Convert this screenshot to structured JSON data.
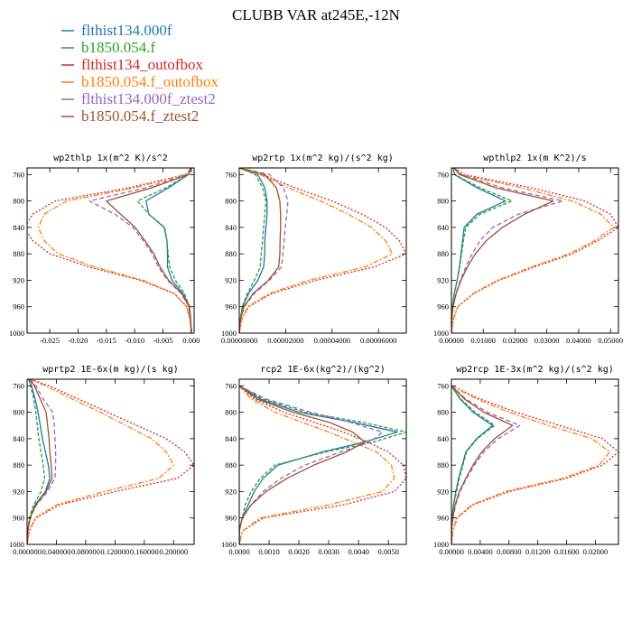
{
  "title": "CLUBB VAR at245E,-12N",
  "legend": [
    {
      "label": "flthist134.000f",
      "color": "#1f77b4"
    },
    {
      "label": "b1850.054.f",
      "color": "#2ca02c"
    },
    {
      "label": "flthist134_outofbox",
      "color": "#d62728"
    },
    {
      "label": "b1850.054.f_outofbox",
      "color": "#ff7f0e"
    },
    {
      "label": "flthist134.000f_ztest2",
      "color": "#9467bd"
    },
    {
      "label": "b1850.054.f_ztest2",
      "color": "#a0522d"
    }
  ],
  "chart_data": [
    {
      "type": "line",
      "title": "wp2thlp  1x(m^2 K)/s^2",
      "xlim": [
        -0.029,
        0.0005
      ],
      "ylim": [
        1000,
        750
      ],
      "xticks": [
        -0.025,
        -0.02,
        -0.015,
        -0.01,
        -0.005,
        0.0
      ],
      "xtick_labels": [
        "-0.025",
        "-0.020",
        "-0.015",
        "-0.010",
        "-0.005",
        "0.000"
      ],
      "yticks": [
        760,
        800,
        840,
        880,
        920,
        960,
        1000
      ],
      "y": [
        750,
        760,
        780,
        800,
        820,
        840,
        860,
        880,
        900,
        920,
        940,
        960,
        980,
        1000
      ],
      "series": [
        {
          "values": [
            0,
            -0.0005,
            -0.004,
            -0.008,
            -0.0075,
            -0.0048,
            -0.0043,
            -0.0042,
            -0.0042,
            -0.0034,
            -0.0015,
            -0.0003,
            -0.0001,
            0.0
          ]
        },
        {
          "values": [
            0,
            -0.0005,
            -0.0045,
            -0.0095,
            -0.0075,
            -0.0047,
            -0.0043,
            -0.0041,
            -0.0038,
            -0.0028,
            -0.0012,
            -0.0003,
            -0.0001,
            0.0
          ]
        },
        {
          "values": [
            0,
            -0.001,
            -0.011,
            -0.024,
            -0.028,
            -0.0295,
            -0.028,
            -0.025,
            -0.018,
            -0.009,
            -0.003,
            -0.0008,
            -0.0002,
            0.0
          ]
        },
        {
          "values": [
            0,
            -0.001,
            -0.01,
            -0.022,
            -0.026,
            -0.027,
            -0.026,
            -0.0235,
            -0.017,
            -0.0085,
            -0.003,
            -0.0008,
            -0.0002,
            0.0
          ]
        },
        {
          "values": [
            0,
            -0.0008,
            -0.008,
            -0.018,
            -0.0135,
            -0.0103,
            -0.0085,
            -0.0069,
            -0.0058,
            -0.0042,
            -0.0018,
            -0.0004,
            -0.0001,
            0.0
          ]
        },
        {
          "values": [
            0,
            -0.0005,
            -0.007,
            -0.015,
            -0.0125,
            -0.0099,
            -0.0082,
            -0.0066,
            -0.0055,
            -0.004,
            -0.0017,
            -0.0004,
            -0.0001,
            0.0
          ]
        }
      ]
    },
    {
      "type": "line",
      "title": "wp2rtp  1x(m^2 kg)/(s^2 kg)",
      "xlim": [
        0.0,
        7.2e-05
      ],
      "ylim": [
        1000,
        750
      ],
      "xticks": [
        0.0,
        2e-05,
        4e-05,
        6e-05
      ],
      "xtick_labels": [
        "0.00000000",
        "0.00002000",
        "0.00004000",
        "0.00006000"
      ],
      "yticks": [
        760,
        800,
        840,
        880,
        920,
        960,
        1000
      ],
      "y": [
        750,
        760,
        780,
        800,
        820,
        840,
        860,
        880,
        900,
        920,
        940,
        960,
        980,
        1000
      ],
      "series": [
        {
          "values": [
            0,
            8e-06,
            1.1e-05,
            1.2e-05,
            1.2e-05,
            1.15e-05,
            1.1e-05,
            1.1e-05,
            1.05e-05,
            8e-06,
            4e-06,
            1.5e-06,
            4e-07,
            0.0
          ]
        },
        {
          "values": [
            0,
            7e-06,
            1e-05,
            1.15e-05,
            1.1e-05,
            1.05e-05,
            1e-05,
            9.5e-06,
            9e-06,
            6.5e-06,
            3.5e-06,
            1.3e-06,
            4e-07,
            0.0
          ]
        },
        {
          "values": [
            0,
            1e-05,
            2.4e-05,
            4e-05,
            5.3e-05,
            6.3e-05,
            6.9e-05,
            7.2e-05,
            5.8e-05,
            3.3e-05,
            1.4e-05,
            4e-06,
            1e-06,
            0.0
          ]
        },
        {
          "values": [
            0,
            9e-06,
            2.1e-05,
            3.5e-05,
            4.7e-05,
            5.7e-05,
            6.3e-05,
            6.6e-05,
            5.4e-05,
            3e-05,
            1.3e-05,
            3.7e-06,
            9e-07,
            0.0
          ]
        },
        {
          "values": [
            0,
            1.3e-05,
            1.9e-05,
            2.1e-05,
            2.05e-05,
            1.98e-05,
            1.93e-05,
            1.88e-05,
            1.82e-05,
            1.3e-05,
            6.5e-06,
            2.2e-06,
            5e-07,
            0.0
          ]
        },
        {
          "values": [
            0,
            1.1e-05,
            1.6e-05,
            1.75e-05,
            1.78e-05,
            1.78e-05,
            1.76e-05,
            1.75e-05,
            1.7e-05,
            1.25e-05,
            6e-06,
            2e-06,
            5e-07,
            0.0
          ]
        }
      ]
    },
    {
      "type": "line",
      "title": "wpthlp2  1x(m K^2)/s",
      "xlim": [
        0.0,
        0.0525
      ],
      "ylim": [
        1000,
        750
      ],
      "xticks": [
        0.0,
        0.01,
        0.02,
        0.03,
        0.04,
        0.05
      ],
      "xtick_labels": [
        "0.00000",
        "0.01000",
        "0.02000",
        "0.03000",
        "0.04000",
        "0.05000"
      ],
      "yticks": [
        760,
        800,
        840,
        880,
        920,
        960,
        1000
      ],
      "y": [
        750,
        760,
        780,
        800,
        820,
        840,
        860,
        880,
        900,
        920,
        940,
        960,
        980,
        1000
      ],
      "series": [
        {
          "values": [
            0.0005,
            0.001,
            0.008,
            0.017,
            0.008,
            0.004,
            0.0035,
            0.003,
            0.0025,
            0.0018,
            0.0009,
            0.0003,
            0.0001,
            0.0
          ]
        },
        {
          "values": [
            0.0005,
            0.001,
            0.009,
            0.019,
            0.009,
            0.0045,
            0.0038,
            0.0032,
            0.0026,
            0.0018,
            0.0009,
            0.0003,
            0.0001,
            0.0
          ]
        },
        {
          "values": [
            0.001,
            0.004,
            0.025,
            0.042,
            0.05,
            0.0525,
            0.046,
            0.038,
            0.026,
            0.015,
            0.007,
            0.002,
            0.0005,
            0.0
          ]
        },
        {
          "values": [
            0.001,
            0.003,
            0.022,
            0.038,
            0.047,
            0.051,
            0.045,
            0.037,
            0.025,
            0.0145,
            0.0068,
            0.002,
            0.0005,
            0.0
          ]
        },
        {
          "values": [
            0.0008,
            0.003,
            0.016,
            0.035,
            0.021,
            0.013,
            0.009,
            0.0065,
            0.0045,
            0.0028,
            0.0014,
            0.0005,
            0.0001,
            0.0
          ]
        },
        {
          "values": [
            0.0008,
            0.0025,
            0.014,
            0.032,
            0.023,
            0.016,
            0.011,
            0.0075,
            0.005,
            0.003,
            0.0015,
            0.0005,
            0.0001,
            0.0
          ]
        }
      ]
    },
    {
      "type": "line",
      "title": "wprtp2  1E-6x(m kg)/(s kg)",
      "xlim": [
        0.0,
        0.228
      ],
      "ylim": [
        1000,
        750
      ],
      "xticks": [
        0.0,
        0.04,
        0.08,
        0.12,
        0.16,
        0.2
      ],
      "xtick_labels": [
        "0.000000",
        "0.040000",
        "0.080000",
        "0.120000",
        "0.160000",
        "0.200000"
      ],
      "yticks": [
        760,
        800,
        840,
        880,
        920,
        960,
        1000
      ],
      "y": [
        750,
        760,
        780,
        800,
        820,
        840,
        860,
        880,
        900,
        920,
        940,
        960,
        980,
        1000
      ],
      "series": [
        {
          "values": [
            0.002,
            0.006,
            0.011,
            0.015,
            0.018,
            0.021,
            0.025,
            0.029,
            0.031,
            0.025,
            0.011,
            0.004,
            0.001,
            0.0
          ]
        },
        {
          "values": [
            0.002,
            0.005,
            0.009,
            0.012,
            0.014,
            0.016,
            0.019,
            0.022,
            0.024,
            0.019,
            0.009,
            0.003,
            0.001,
            0.0
          ]
        },
        {
          "values": [
            0.005,
            0.03,
            0.07,
            0.11,
            0.15,
            0.19,
            0.215,
            0.228,
            0.205,
            0.12,
            0.045,
            0.012,
            0.003,
            0.0
          ]
        },
        {
          "values": [
            0.004,
            0.025,
            0.062,
            0.1,
            0.135,
            0.17,
            0.19,
            0.2,
            0.18,
            0.105,
            0.04,
            0.011,
            0.003,
            0.0
          ]
        },
        {
          "values": [
            0.004,
            0.012,
            0.022,
            0.035,
            0.037,
            0.038,
            0.039,
            0.039,
            0.038,
            0.028,
            0.013,
            0.004,
            0.001,
            0.0
          ]
        },
        {
          "values": [
            0.003,
            0.01,
            0.018,
            0.026,
            0.028,
            0.03,
            0.031,
            0.033,
            0.034,
            0.026,
            0.012,
            0.004,
            0.001,
            0.0
          ]
        }
      ]
    },
    {
      "type": "line",
      "title": "rcp2  1E-6x(kg^2)/(kg^2)",
      "xlim": [
        0.0,
        0.0056
      ],
      "ylim": [
        1000,
        750
      ],
      "xticks": [
        0.0,
        0.001,
        0.002,
        0.003,
        0.004,
        0.005
      ],
      "xtick_labels": [
        "0.0000",
        "0.0010",
        "0.0020",
        "0.0030",
        "0.0040",
        "0.0050"
      ],
      "yticks": [
        760,
        800,
        840,
        880,
        920,
        960,
        1000
      ],
      "y": [
        760,
        780,
        800,
        815,
        830,
        845,
        860,
        880,
        900,
        920,
        940,
        960,
        980,
        1000
      ],
      "series": [
        {
          "values": [
            0.0,
            0.0007,
            0.002,
            0.0038,
            0.0053,
            0.0042,
            0.0028,
            0.0013,
            0.0008,
            0.0005,
            0.0003,
            0.0001,
            0.0,
            0.0
          ]
        },
        {
          "values": [
            0.0,
            0.0008,
            0.0022,
            0.0041,
            0.0056,
            0.0045,
            0.0029,
            0.0012,
            0.0007,
            0.0004,
            0.0002,
            0.0001,
            0.0,
            0.0
          ]
        },
        {
          "values": [
            0.0,
            0.0005,
            0.0015,
            0.0025,
            0.0035,
            0.0043,
            0.005,
            0.0055,
            0.0056,
            0.0052,
            0.0035,
            0.0008,
            0.0001,
            0.0
          ]
        },
        {
          "values": [
            0.0,
            0.0004,
            0.0012,
            0.0021,
            0.003,
            0.0038,
            0.0046,
            0.0051,
            0.0052,
            0.0048,
            0.003,
            0.0007,
            0.0001,
            0.0
          ]
        },
        {
          "values": [
            0.0,
            0.0009,
            0.0024,
            0.0037,
            0.0048,
            0.0044,
            0.0034,
            0.0022,
            0.0014,
            0.0008,
            0.0004,
            0.0001,
            0.0,
            0.0
          ]
        },
        {
          "values": [
            0.0,
            0.0006,
            0.0018,
            0.003,
            0.0038,
            0.0042,
            0.0036,
            0.0025,
            0.0016,
            0.0009,
            0.0004,
            0.0001,
            0.0,
            0.0
          ]
        }
      ]
    },
    {
      "type": "line",
      "title": "wp2rcp  1E-3x(m^2 kg)/(s^2 kg)",
      "xlim": [
        0.0,
        0.0232
      ],
      "ylim": [
        1000,
        750
      ],
      "xticks": [
        0.0,
        0.004,
        0.008,
        0.012,
        0.016,
        0.02
      ],
      "xtick_labels": [
        "0.00000",
        "0.00400",
        "0.00800",
        "0.01200",
        "0.01600",
        "0.02000"
      ],
      "yticks": [
        760,
        800,
        840,
        880,
        920,
        960,
        1000
      ],
      "y": [
        760,
        780,
        800,
        820,
        840,
        860,
        880,
        900,
        920,
        940,
        960,
        980,
        1000
      ],
      "series": [
        {
          "values": [
            0.0,
            0.0012,
            0.003,
            0.0057,
            0.0035,
            0.002,
            0.0015,
            0.001,
            0.0006,
            0.0003,
            0.0001,
            0.0,
            0.0
          ]
        },
        {
          "values": [
            0.0,
            0.0013,
            0.0033,
            0.006,
            0.0036,
            0.0021,
            0.0016,
            0.0011,
            0.0007,
            0.0003,
            0.0001,
            0.0,
            0.0
          ]
        },
        {
          "values": [
            0.0,
            0.004,
            0.009,
            0.015,
            0.021,
            0.0232,
            0.021,
            0.016,
            0.008,
            0.003,
            0.0008,
            0.0002,
            0.0
          ]
        },
        {
          "values": [
            0.0,
            0.0035,
            0.008,
            0.0135,
            0.0195,
            0.022,
            0.0205,
            0.0155,
            0.0075,
            0.0028,
            0.0007,
            0.0002,
            0.0
          ]
        },
        {
          "values": [
            0.0,
            0.002,
            0.005,
            0.0095,
            0.0065,
            0.0045,
            0.0032,
            0.0021,
            0.0012,
            0.0006,
            0.0002,
            0.0,
            0.0
          ]
        },
        {
          "values": [
            0.0,
            0.0018,
            0.0045,
            0.0085,
            0.006,
            0.0042,
            0.003,
            0.002,
            0.0011,
            0.0005,
            0.0002,
            0.0,
            0.0
          ]
        }
      ]
    }
  ]
}
